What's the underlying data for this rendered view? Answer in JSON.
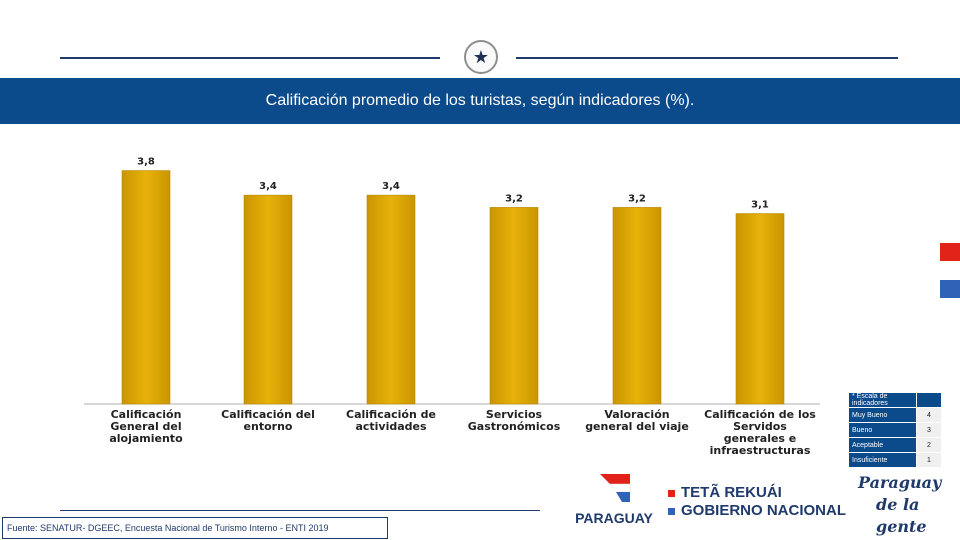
{
  "header": {
    "seal_icon": "star-seal-icon"
  },
  "title": "Calificación promedio de los turistas, según indicadores (%).",
  "chart_data": {
    "type": "bar",
    "categories": [
      [
        "Calificación",
        "General del",
        "alojamiento"
      ],
      [
        "Calificación del",
        "entorno"
      ],
      [
        "Calificación de",
        "actividades"
      ],
      [
        "Servicios",
        "Gastronómicos"
      ],
      [
        "Valoración",
        "general del viaje"
      ],
      [
        "Calificación de los",
        "Servidos",
        "generales e",
        "infraestructuras"
      ]
    ],
    "values": [
      3.8,
      3.4,
      3.4,
      3.2,
      3.2,
      3.1
    ],
    "value_labels": [
      "3,8",
      "3,4",
      "3,4",
      "3,2",
      "3,2",
      "3,1"
    ],
    "ylim": [
      0,
      4.2
    ],
    "bar_color": "#e0a800",
    "title": "",
    "xlabel": "",
    "ylabel": ""
  },
  "scale_table": {
    "header": "* Escala de indicadores",
    "rows": [
      {
        "label": "Muy Bueno",
        "value": "4"
      },
      {
        "label": "Bueno",
        "value": "3"
      },
      {
        "label": "Aceptable",
        "value": "2"
      },
      {
        "label": "Insuficiente",
        "value": "1"
      }
    ]
  },
  "footer": {
    "source": "Fuente: SENATUR- DGEEC, Encuesta Nacional de Turismo Interno - ENTI 2019",
    "paraguay_logo_text": "PARAGUAY",
    "gob_line1": "TETÃ REKUÁI",
    "gob_line2": "GOBIERNO NACIONAL",
    "slogan_line1": "Paraguay",
    "slogan_line2": "de la gente"
  },
  "colors": {
    "brand_blue": "#0b4a8b",
    "red": "#e2231a",
    "blue": "#2e63b8"
  }
}
